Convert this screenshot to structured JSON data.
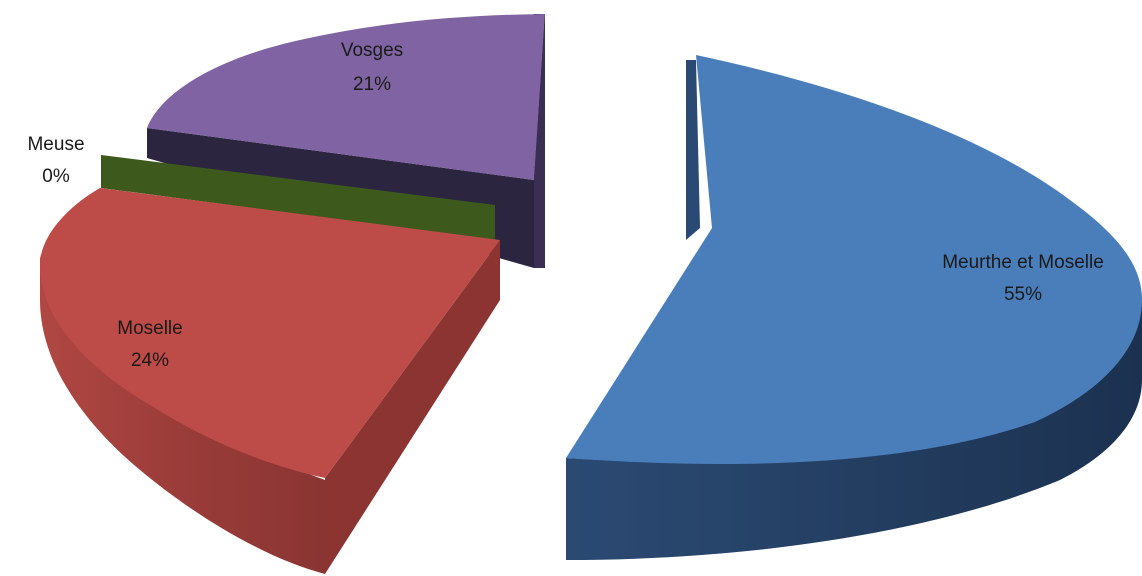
{
  "chart_data": {
    "type": "pie",
    "style": "3d-exploded",
    "slices": [
      {
        "label": "Meurthe et Moselle",
        "pct_label": "55%",
        "value": 55,
        "color": "#4a7ebb"
      },
      {
        "label": "Moselle",
        "pct_label": "24%",
        "value": 24,
        "color": "#bd4b48"
      },
      {
        "label": "Meuse",
        "pct_label": "0%",
        "value": 0,
        "color": "#3d5a1c"
      },
      {
        "label": "Vosges",
        "pct_label": "21%",
        "value": 21,
        "color": "#7f63a2"
      }
    ]
  }
}
